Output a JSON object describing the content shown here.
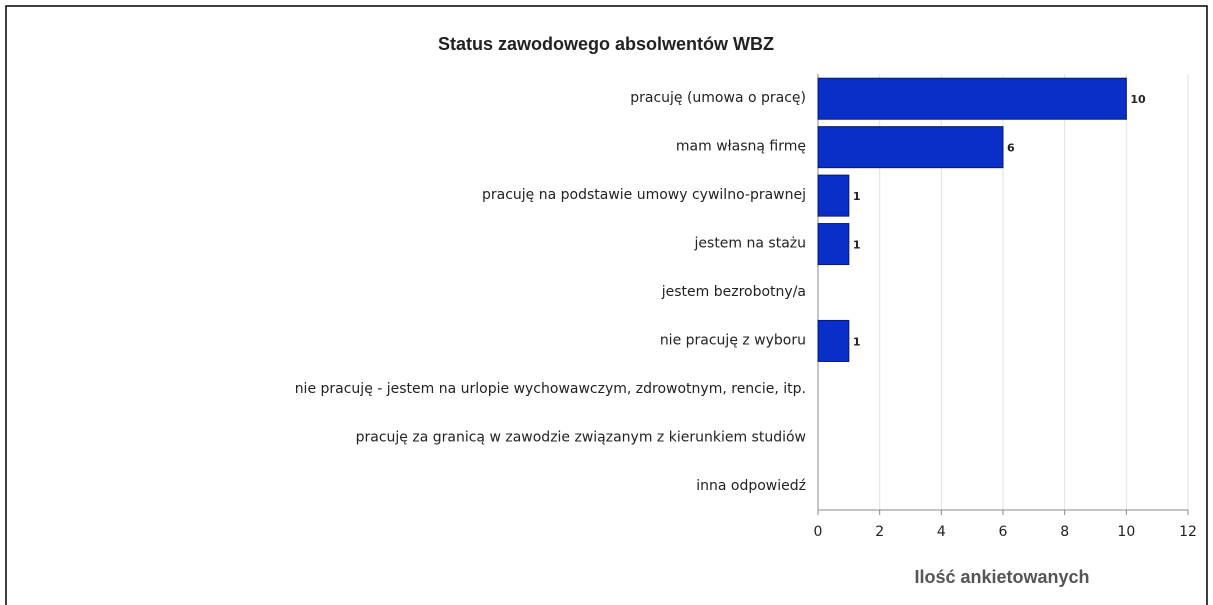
{
  "chart_data": {
    "type": "bar",
    "orientation": "horizontal",
    "title": "Status zawodowego absolwentów WBZ",
    "x_label": "Ilość ankietowanych",
    "categories": [
      "pracuję (umowa o pracę)",
      "mam własną firmę",
      "pracuję na podstawie umowy cywilno-prawnej",
      "jestem na stażu",
      "jestem bezrobotny/a",
      "nie pracuję z wyboru",
      "nie pracuję - jestem na urlopie wychowawczym, zdrowotnym, rencie, itp.",
      "pracuję za granicą w zawodzie związanym z kierunkiem studiów",
      "inna odpowiedź"
    ],
    "values": [
      10,
      6,
      1,
      1,
      0,
      1,
      0,
      0,
      0
    ],
    "color": "#0a2ec8",
    "xlim": [
      0,
      12
    ],
    "xticks": [
      0,
      2,
      4,
      6,
      8,
      10,
      12
    ],
    "grid": true
  }
}
